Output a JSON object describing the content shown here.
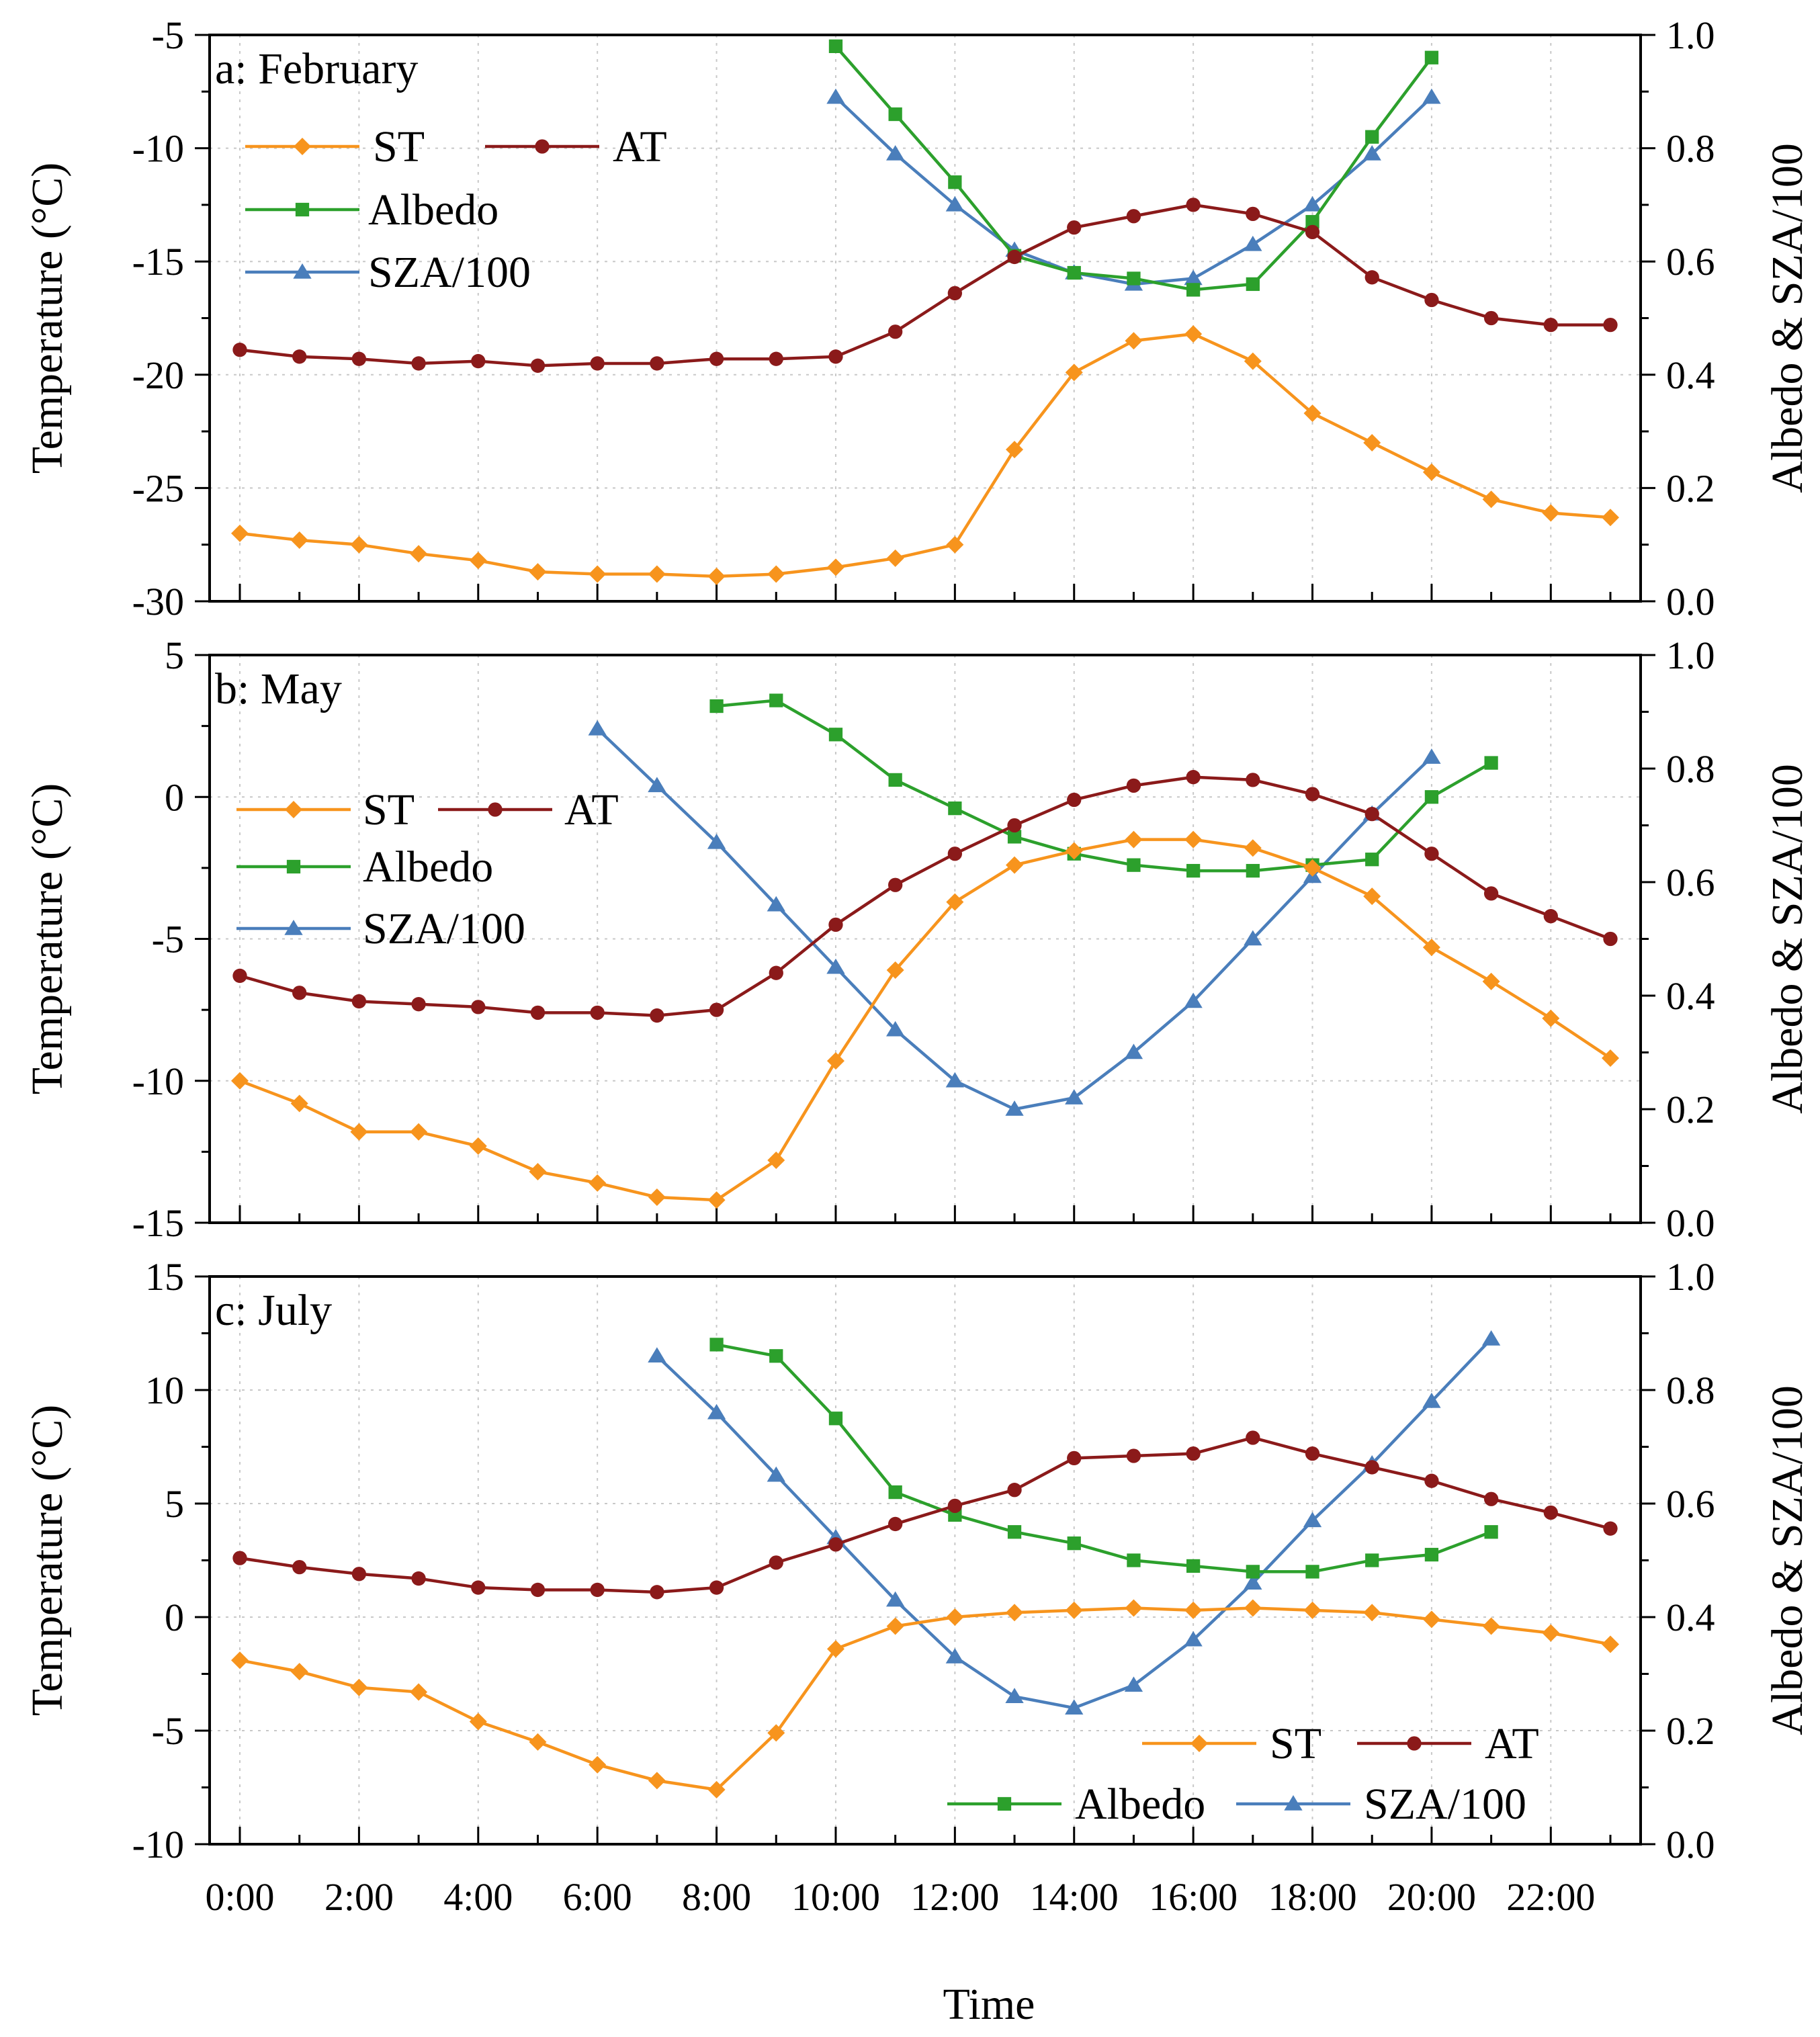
{
  "chart_data": {
    "type": "line",
    "x_categories": [
      "0:00",
      "1:00",
      "2:00",
      "3:00",
      "4:00",
      "5:00",
      "6:00",
      "7:00",
      "8:00",
      "9:00",
      "10:00",
      "11:00",
      "12:00",
      "13:00",
      "14:00",
      "15:00",
      "16:00",
      "17:00",
      "18:00",
      "19:00",
      "20:00",
      "21:00",
      "22:00",
      "23:00"
    ],
    "x_tick_labels": [
      "0:00",
      "2:00",
      "4:00",
      "6:00",
      "8:00",
      "10:00",
      "12:00",
      "14:00",
      "16:00",
      "18:00",
      "20:00",
      "22:00"
    ],
    "xlabel": "Time",
    "ylabel_left": "Temperature (°C)",
    "ylabel_right": "Albedo & SZA/100",
    "grid": true,
    "series_styles": {
      "ST": {
        "color": "#f7941d",
        "marker": "diamond"
      },
      "AT": {
        "color": "#8b1a1a",
        "marker": "circle"
      },
      "Albedo": {
        "color": "#2ca02c",
        "marker": "square"
      },
      "SZA/100": {
        "color": "#4a7ebb",
        "marker": "triangle"
      }
    },
    "panels": [
      {
        "title": "a: February",
        "ylim_left": [
          -30,
          -5
        ],
        "yticks_left": [
          "-5",
          "-10",
          "-15",
          "-20",
          "-25",
          "-30"
        ],
        "ylim_right": [
          0,
          1
        ],
        "yticks_right": [
          "1.0",
          "0.8",
          "0.6",
          "0.4",
          "0.2",
          "0.0"
        ],
        "legend_position": "top-left",
        "series": [
          {
            "name": "ST",
            "axis": "left",
            "values": [
              -27.0,
              -27.3,
              -27.5,
              -27.9,
              -28.2,
              -28.7,
              -28.8,
              -28.8,
              -28.9,
              -28.8,
              -28.5,
              -28.1,
              -27.5,
              -23.3,
              -19.9,
              -18.5,
              -18.2,
              -19.4,
              -21.7,
              -23.0,
              -24.3,
              -25.5,
              -26.1,
              -26.3
            ]
          },
          {
            "name": "AT",
            "axis": "left",
            "values": [
              -18.9,
              -19.2,
              -19.3,
              -19.5,
              -19.4,
              -19.6,
              -19.5,
              -19.5,
              -19.3,
              -19.3,
              -19.2,
              -18.1,
              -16.4,
              -14.8,
              -13.5,
              -13.0,
              -12.5,
              -12.9,
              -13.7,
              -15.7,
              -16.7,
              -17.5,
              -17.8,
              -17.8
            ]
          },
          {
            "name": "Albedo",
            "axis": "right",
            "values": [
              null,
              null,
              null,
              null,
              null,
              null,
              null,
              null,
              null,
              null,
              0.98,
              0.86,
              0.74,
              0.61,
              0.58,
              0.57,
              0.55,
              0.56,
              0.67,
              0.82,
              0.96,
              null,
              null,
              null
            ]
          },
          {
            "name": "SZA/100",
            "axis": "right",
            "values": [
              null,
              null,
              null,
              null,
              null,
              null,
              null,
              null,
              null,
              null,
              0.89,
              0.79,
              0.7,
              0.62,
              0.58,
              0.56,
              0.57,
              0.63,
              0.7,
              0.79,
              0.89,
              null,
              null,
              null
            ]
          }
        ]
      },
      {
        "title": "b: May",
        "ylim_left": [
          -15,
          5
        ],
        "yticks_left": [
          "5",
          "0",
          "-5",
          "-10",
          "-15"
        ],
        "ylim_right": [
          0,
          1
        ],
        "yticks_right": [
          "1.0",
          "0.8",
          "0.6",
          "0.4",
          "0.2",
          "0.0"
        ],
        "legend_position": "left",
        "series": [
          {
            "name": "ST",
            "axis": "left",
            "values": [
              -10.0,
              -10.8,
              -11.8,
              -11.8,
              -12.3,
              -13.2,
              -13.6,
              -14.1,
              -14.2,
              -12.8,
              -9.3,
              -6.1,
              -3.7,
              -2.4,
              -1.9,
              -1.5,
              -1.5,
              -1.8,
              -2.5,
              -3.5,
              -5.3,
              -6.5,
              -7.8,
              -9.2
            ]
          },
          {
            "name": "AT",
            "axis": "left",
            "values": [
              -6.3,
              -6.9,
              -7.2,
              -7.3,
              -7.4,
              -7.6,
              -7.6,
              -7.7,
              -7.5,
              -6.2,
              -4.5,
              -3.1,
              -2.0,
              -1.0,
              -0.1,
              0.4,
              0.7,
              0.6,
              0.1,
              -0.6,
              -2.0,
              -3.4,
              -4.2,
              -5.0
            ]
          },
          {
            "name": "Albedo",
            "axis": "right",
            "values": [
              null,
              null,
              null,
              null,
              null,
              null,
              null,
              null,
              0.91,
              0.92,
              0.86,
              0.78,
              0.73,
              0.68,
              0.65,
              0.63,
              0.62,
              0.62,
              0.63,
              0.64,
              0.75,
              0.81,
              null,
              null
            ]
          },
          {
            "name": "SZA/100",
            "axis": "right",
            "values": [
              null,
              null,
              null,
              null,
              null,
              null,
              0.87,
              0.77,
              0.67,
              0.56,
              0.45,
              0.34,
              0.25,
              0.2,
              0.22,
              0.3,
              0.39,
              0.5,
              0.61,
              0.72,
              0.82,
              null,
              null,
              null
            ]
          }
        ]
      },
      {
        "title": "c: July",
        "ylim_left": [
          -10,
          15
        ],
        "yticks_left": [
          "15",
          "10",
          "5",
          "0",
          "-5",
          "-10"
        ],
        "ylim_right": [
          0,
          1
        ],
        "yticks_right": [
          "1.0",
          "0.8",
          "0.6",
          "0.4",
          "0.2",
          "0.0"
        ],
        "legend_position": "bottom-right",
        "series": [
          {
            "name": "ST",
            "axis": "left",
            "values": [
              -1.9,
              -2.4,
              -3.1,
              -3.3,
              -4.6,
              -5.5,
              -6.5,
              -7.2,
              -7.6,
              -5.1,
              -1.4,
              -0.4,
              0.0,
              0.2,
              0.3,
              0.4,
              0.3,
              0.4,
              0.3,
              0.2,
              -0.1,
              -0.4,
              -0.7,
              -1.2
            ]
          },
          {
            "name": "AT",
            "axis": "left",
            "values": [
              2.6,
              2.2,
              1.9,
              1.7,
              1.3,
              1.2,
              1.2,
              1.1,
              1.3,
              2.4,
              3.2,
              4.1,
              4.9,
              5.6,
              7.0,
              7.1,
              7.2,
              7.9,
              7.2,
              6.6,
              6.0,
              5.2,
              4.6,
              3.9
            ]
          },
          {
            "name": "Albedo",
            "axis": "right",
            "values": [
              null,
              null,
              null,
              null,
              null,
              null,
              null,
              null,
              0.88,
              0.86,
              0.75,
              0.62,
              0.58,
              0.55,
              0.53,
              0.5,
              0.49,
              0.48,
              0.48,
              0.5,
              0.51,
              0.55,
              null,
              null
            ]
          },
          {
            "name": "SZA/100",
            "axis": "right",
            "values": [
              null,
              null,
              null,
              null,
              null,
              null,
              null,
              0.86,
              0.76,
              0.65,
              0.54,
              0.43,
              0.33,
              0.26,
              0.24,
              0.28,
              0.36,
              0.46,
              0.57,
              0.67,
              0.78,
              0.89,
              null,
              null
            ]
          }
        ]
      }
    ]
  }
}
